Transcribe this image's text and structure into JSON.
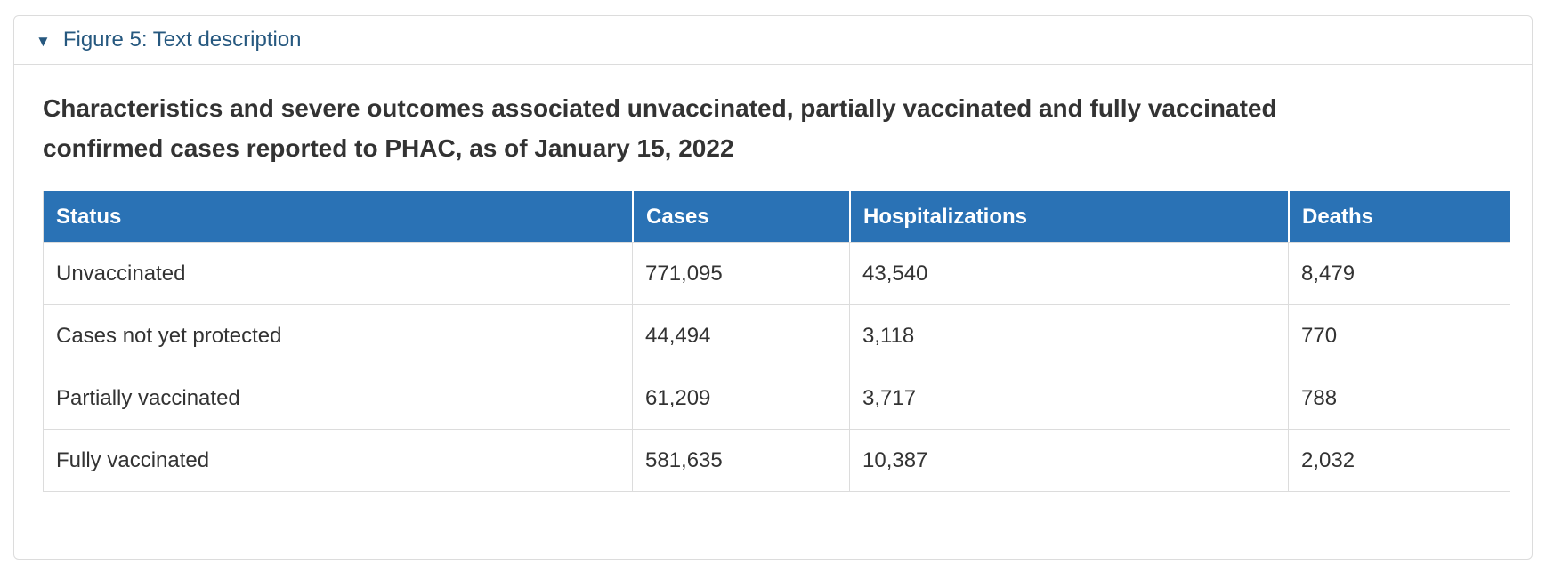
{
  "panel": {
    "collapse_marker": "▼",
    "summary_label": "Figure 5: Text description"
  },
  "figure": {
    "title": "Characteristics and severe outcomes associated unvaccinated, partially vaccinated and fully vaccinated confirmed cases reported to PHAC, as of January 15, 2022"
  },
  "table": {
    "columns": [
      "Status",
      "Cases",
      "Hospitalizations",
      "Deaths"
    ],
    "rows": [
      [
        "Unvaccinated",
        "771,095",
        "43,540",
        "8,479"
      ],
      [
        "Cases not yet protected",
        "44,494",
        "3,118",
        "770"
      ],
      [
        "Partially vaccinated",
        "61,209",
        "3,717",
        "788"
      ],
      [
        "Fully vaccinated",
        "581,635",
        "10,387",
        "2,032"
      ]
    ]
  },
  "colors": {
    "table_header_bg": "#2a72b5",
    "table_header_text": "#ffffff",
    "summary_link": "#26587f",
    "body_text": "#333333",
    "border": "#dcdcdc"
  },
  "chart_data": {
    "type": "table",
    "title": "Characteristics and severe outcomes associated unvaccinated, partially vaccinated and fully vaccinated confirmed cases reported to PHAC, as of January 15, 2022",
    "columns": [
      "Status",
      "Cases",
      "Hospitalizations",
      "Deaths"
    ],
    "categories": [
      "Unvaccinated",
      "Cases not yet protected",
      "Partially vaccinated",
      "Fully vaccinated"
    ],
    "series": [
      {
        "name": "Cases",
        "values": [
          771095,
          44494,
          61209,
          581635
        ]
      },
      {
        "name": "Hospitalizations",
        "values": [
          43540,
          3118,
          3717,
          10387
        ]
      },
      {
        "name": "Deaths",
        "values": [
          8479,
          770,
          788,
          2032
        ]
      }
    ]
  }
}
